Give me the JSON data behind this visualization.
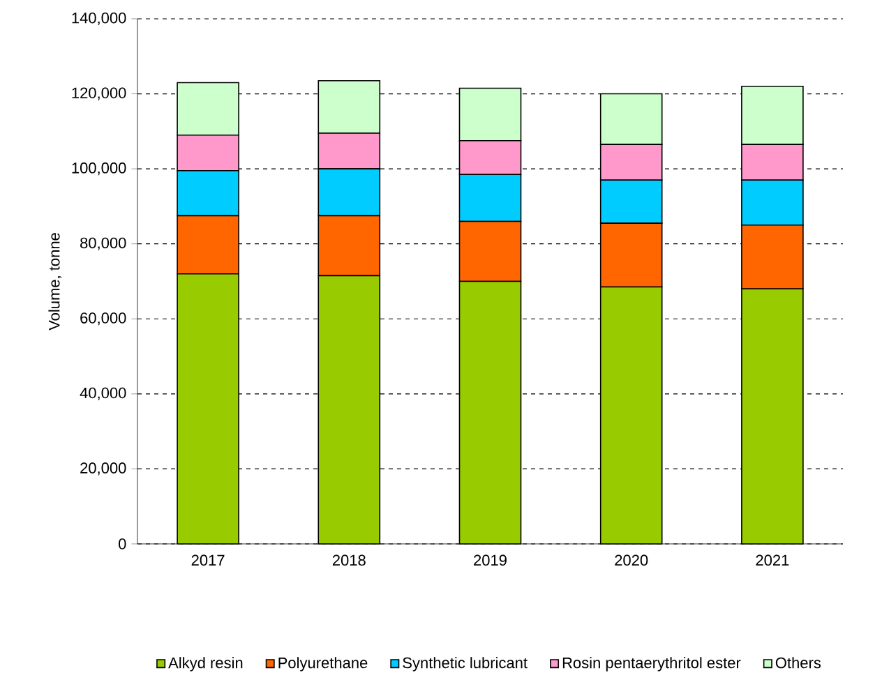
{
  "chart_data": {
    "type": "bar",
    "stacked": true,
    "ylabel": "Volume, tonne",
    "categories": [
      "2017",
      "2018",
      "2019",
      "2020",
      "2021"
    ],
    "series": [
      {
        "name": "Alkyd resin",
        "color": "#99cc00",
        "values": [
          72000,
          71500,
          70000,
          68500,
          68000
        ]
      },
      {
        "name": "Polyurethane",
        "color": "#ff6600",
        "values": [
          15500,
          16000,
          16000,
          17000,
          17000
        ]
      },
      {
        "name": "Synthetic lubricant",
        "color": "#00ccff",
        "values": [
          12000,
          12500,
          12500,
          11500,
          12000
        ]
      },
      {
        "name": "Rosin pentaerythritol ester",
        "color": "#ff99cc",
        "values": [
          9500,
          9500,
          9000,
          9500,
          9500
        ]
      },
      {
        "name": "Others",
        "color": "#ccffcc",
        "values": [
          14000,
          14000,
          14000,
          13500,
          15500
        ]
      }
    ],
    "ylim": [
      0,
      140000
    ],
    "yticks": [
      {
        "value": 0,
        "label": "0"
      },
      {
        "value": 20000,
        "label": "20,000"
      },
      {
        "value": 40000,
        "label": "40,000"
      },
      {
        "value": 60000,
        "label": "60,000"
      },
      {
        "value": 80000,
        "label": "80,000"
      },
      {
        "value": 100000,
        "label": "100,000"
      },
      {
        "value": 120000,
        "label": "120,000"
      },
      {
        "value": 140000,
        "label": "140,000"
      }
    ],
    "grid": "y",
    "legend": "bottom"
  }
}
